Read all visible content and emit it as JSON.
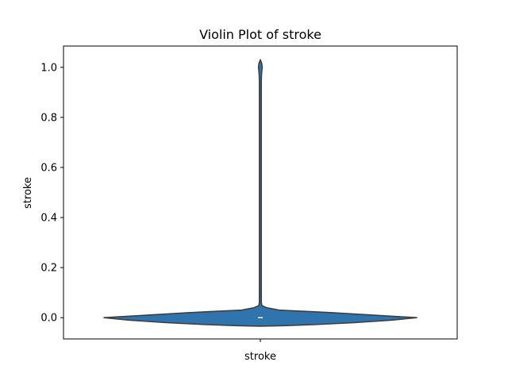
{
  "chart_data": {
    "type": "violin",
    "title": "Violin Plot of stroke",
    "xlabel": "",
    "ylabel": "stroke",
    "categories": [
      "stroke"
    ],
    "ylim": [
      -0.085,
      1.085
    ],
    "yticks": [
      0.0,
      0.2,
      0.4,
      0.6,
      0.8,
      1.0
    ],
    "ytick_labels": [
      "0.0",
      "0.2",
      "0.4",
      "0.6",
      "0.8",
      "1.0"
    ],
    "grid": false,
    "series": [
      {
        "name": "stroke",
        "color": "#2f74ad",
        "density_profile": [
          {
            "y": -0.034,
            "w": 0.0
          },
          {
            "y": -0.032,
            "w": 0.15
          },
          {
            "y": -0.028,
            "w": 0.34
          },
          {
            "y": -0.02,
            "w": 0.6
          },
          {
            "y": -0.01,
            "w": 0.84
          },
          {
            "y": 0.0,
            "w": 1.0
          },
          {
            "y": 0.008,
            "w": 0.78
          },
          {
            "y": 0.02,
            "w": 0.46
          },
          {
            "y": 0.03,
            "w": 0.12
          },
          {
            "y": 0.04,
            "w": 0.04
          },
          {
            "y": 0.048,
            "w": 0.01
          },
          {
            "y": 0.06,
            "w": 0.006
          },
          {
            "y": 0.3,
            "w": 0.006
          },
          {
            "y": 0.6,
            "w": 0.006
          },
          {
            "y": 0.94,
            "w": 0.006
          },
          {
            "y": 0.965,
            "w": 0.007
          },
          {
            "y": 0.985,
            "w": 0.009
          },
          {
            "y": 1.0,
            "w": 0.012
          },
          {
            "y": 1.015,
            "w": 0.009
          },
          {
            "y": 1.03,
            "w": 0.0
          }
        ],
        "median": 0.0,
        "quartiles": [
          0.0,
          0.0
        ]
      }
    ]
  }
}
